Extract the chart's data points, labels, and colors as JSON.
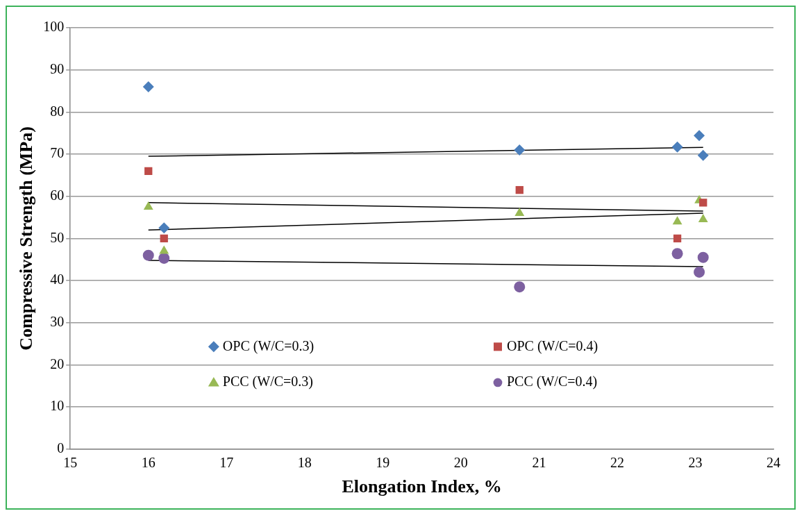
{
  "chart_data": {
    "type": "scatter",
    "xlabel": "Elongation Index, %",
    "ylabel": "Compressive Strength (MPa)",
    "xlim": [
      15,
      24
    ],
    "xticks": [
      15,
      16,
      17,
      18,
      19,
      20,
      21,
      22,
      23,
      24
    ],
    "ylim": [
      0,
      100
    ],
    "yticks": [
      0,
      10,
      20,
      30,
      40,
      50,
      60,
      70,
      80,
      90,
      100
    ],
    "grid": "y",
    "legend": "bottom",
    "series": [
      {
        "name": "OPC (W/C=0.3)",
        "color": "#4a7ebb",
        "marker": "diamond",
        "x": [
          16,
          16.2,
          20.75,
          22.77,
          23.05,
          23.1
        ],
        "values": [
          86,
          52.5,
          71,
          71.7,
          74.4,
          69.7
        ]
      },
      {
        "name": "OPC (W/C=0.4)",
        "color": "#be4b48",
        "marker": "square",
        "x": [
          16,
          16.2,
          20.75,
          22.77,
          23.1
        ],
        "values": [
          66,
          50,
          61.5,
          50,
          58.5
        ]
      },
      {
        "name": "PCC (W/C=0.3)",
        "color": "#98b954",
        "marker": "triangle",
        "x": [
          16,
          16.2,
          20.75,
          22.77,
          23.05,
          23.1
        ],
        "values": [
          57.5,
          47,
          56,
          54,
          59,
          54.5
        ]
      },
      {
        "name": "PCC (W/C=0.4)",
        "color": "#7d60a0",
        "marker": "circle",
        "x": [
          16,
          16.2,
          20.75,
          22.77,
          23.05,
          23.1
        ],
        "values": [
          46,
          45.3,
          38.5,
          46.4,
          42,
          45.5
        ]
      },
      {
        "type": "line",
        "color": "#000000",
        "marker": "none",
        "x": [
          16,
          23.1
        ],
        "values": [
          69.5,
          71.6
        ]
      },
      {
        "type": "line",
        "color": "#000000",
        "marker": "none",
        "x": [
          16,
          23.1
        ],
        "values": [
          58.5,
          56.5
        ]
      },
      {
        "type": "line",
        "color": "#000000",
        "marker": "none",
        "x": [
          16,
          23.1
        ],
        "values": [
          52,
          56
        ]
      },
      {
        "type": "line",
        "color": "#000000",
        "marker": "none",
        "x": [
          16,
          23.1
        ],
        "values": [
          44.8,
          43.3
        ]
      }
    ]
  }
}
